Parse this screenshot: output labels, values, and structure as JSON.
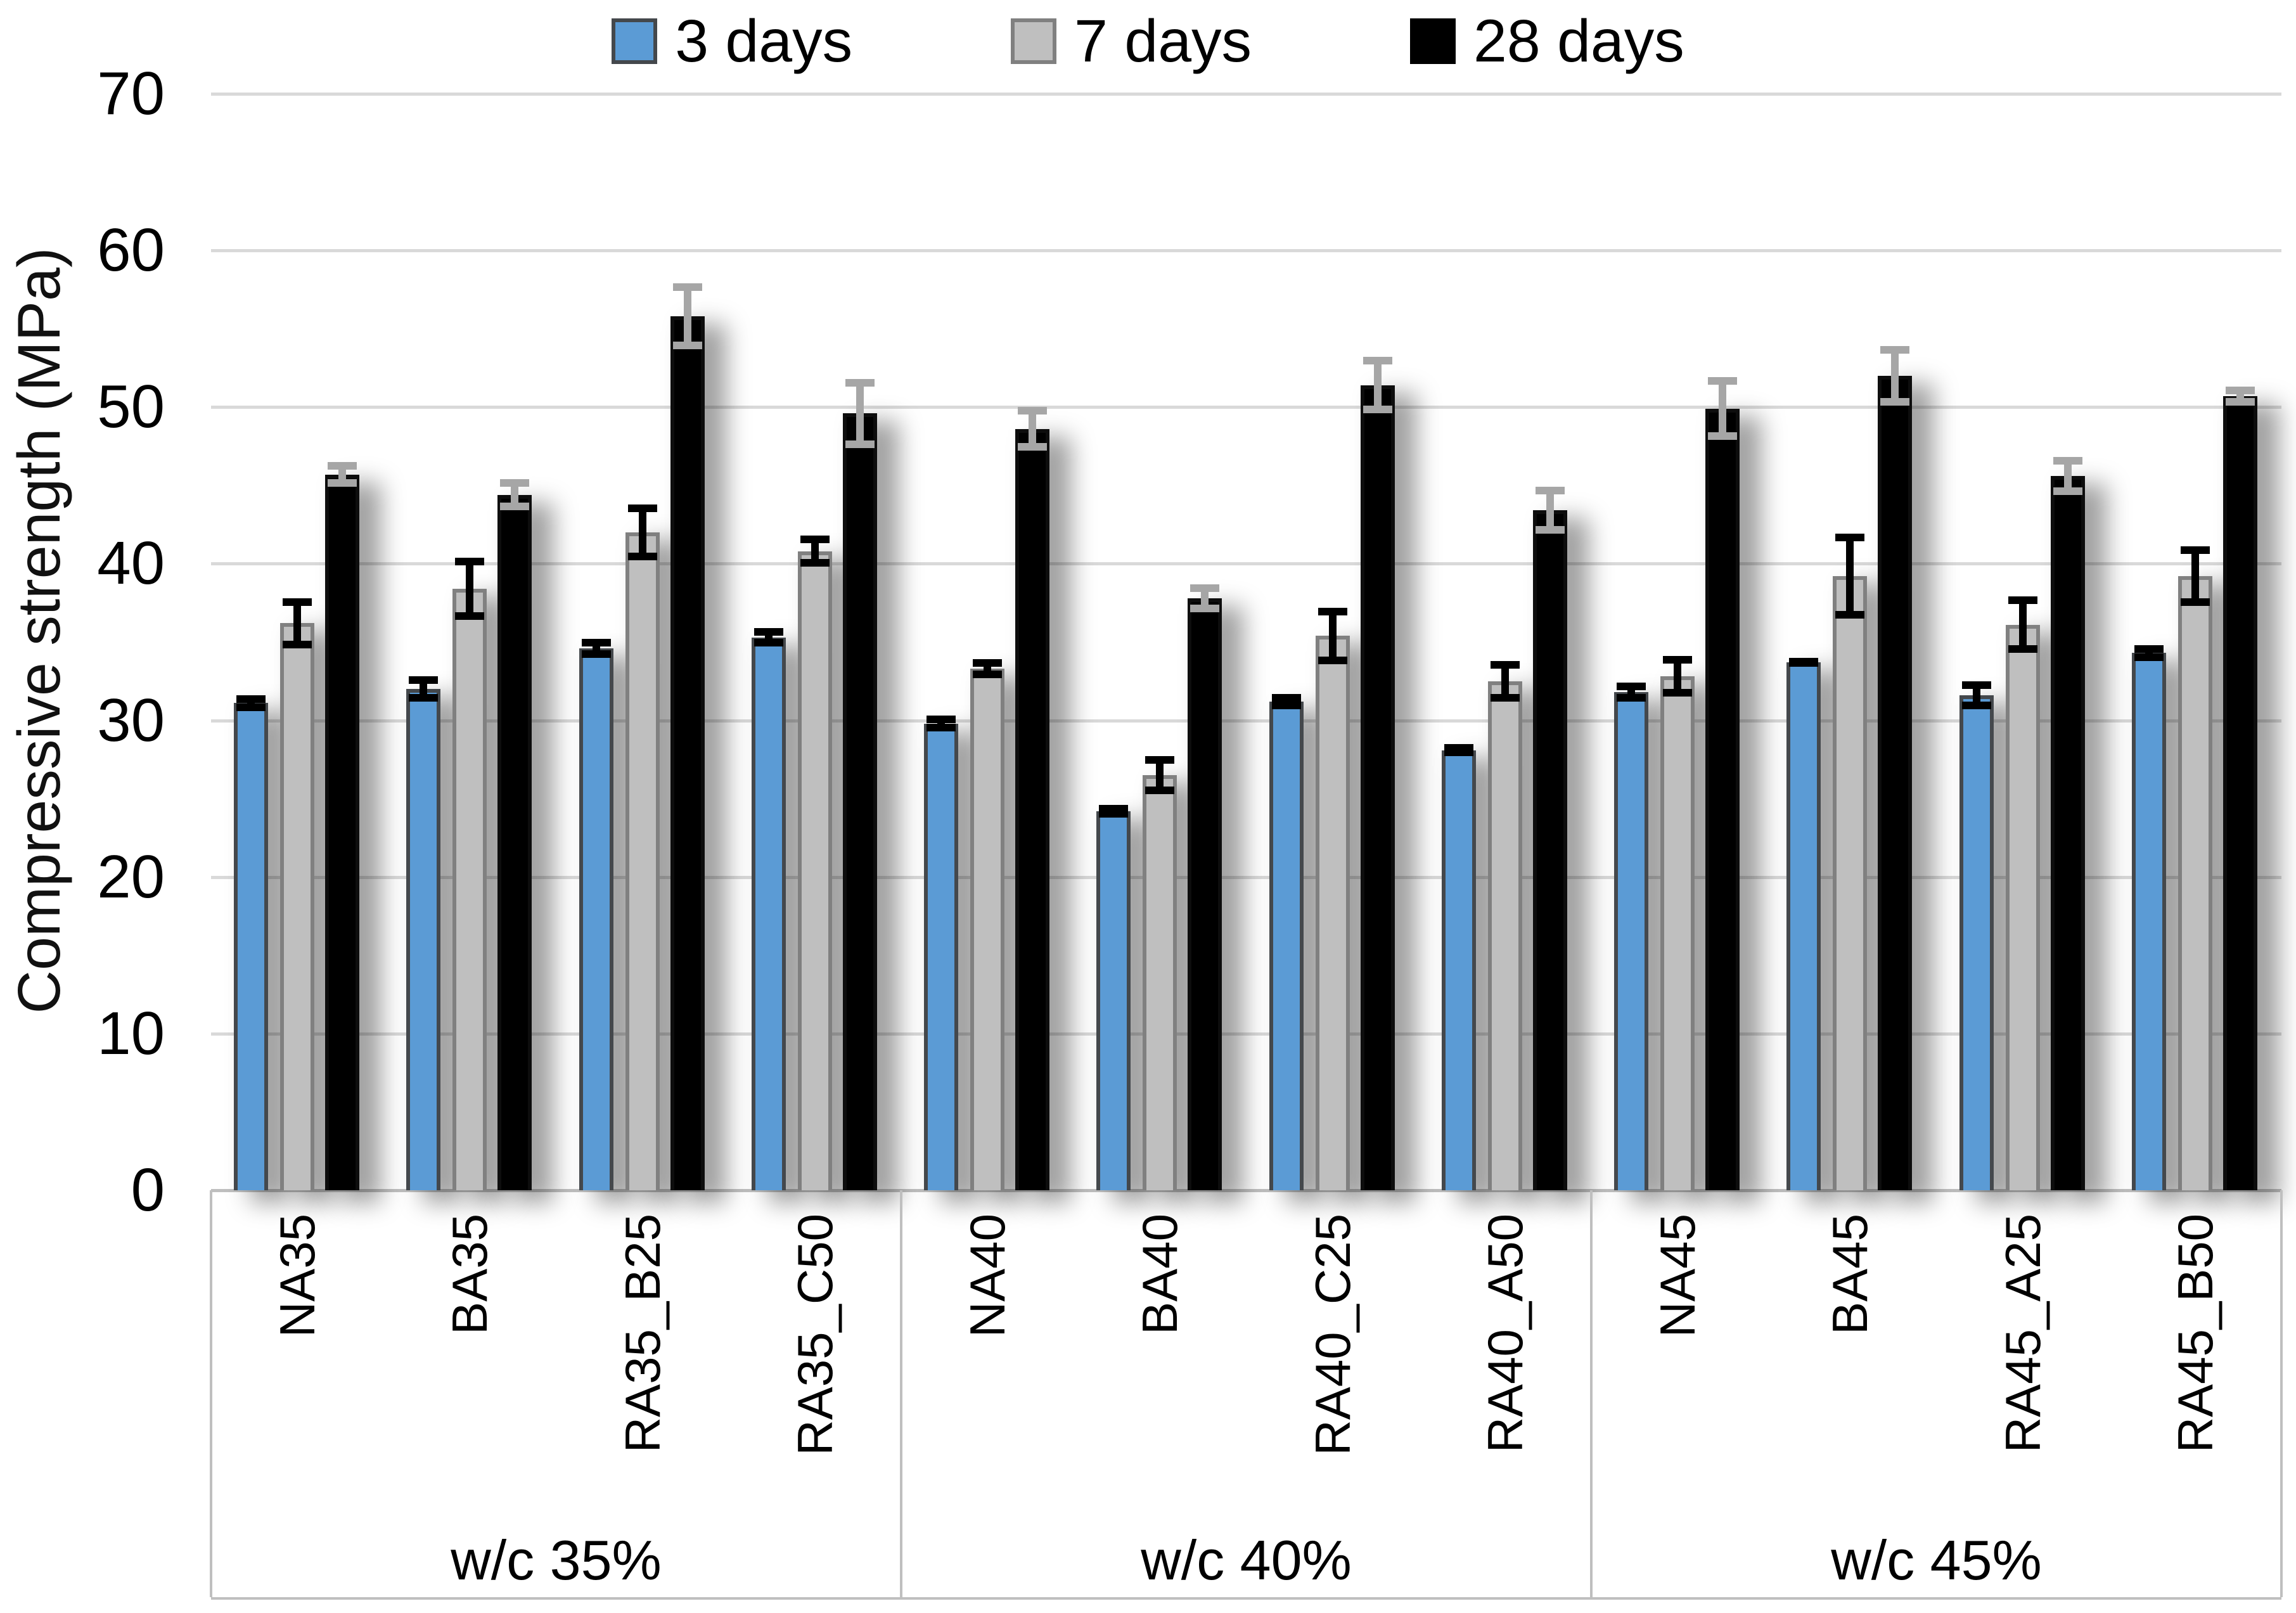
{
  "legend": {
    "items": [
      {
        "label": "3 days",
        "color": "#5B9BD5",
        "border": "#44484c"
      },
      {
        "label": "7 days",
        "color": "#BFBFBF",
        "border": "#808080"
      },
      {
        "label": "28 days",
        "color": "#000000",
        "border": "#000000"
      }
    ]
  },
  "y_axis": {
    "title": "Compressive strength (MPa)",
    "tick_labels": [
      "0",
      "10",
      "20",
      "30",
      "40",
      "50",
      "60",
      "70"
    ],
    "min": 0,
    "max": 70
  },
  "x_axis": {
    "section_labels": [
      "w/c 35%",
      "w/c 40%",
      "w/c 45%"
    ]
  },
  "chart_data": {
    "type": "bar",
    "ylabel": "Compressive strength (MPa)",
    "ylim": [
      0,
      70
    ],
    "ytick_step": 10,
    "grid": true,
    "legend_position": "top",
    "error_bars": true,
    "categories": [
      "NA35",
      "BA35",
      "RA35_B25",
      "RA35_C50",
      "NA40",
      "BA40",
      "RA40_C25",
      "RA40_A50",
      "NA45",
      "BA45",
      "RA45_A25",
      "RA45_B50"
    ],
    "groups": [
      {
        "label": "w/c 35%",
        "categories": [
          "NA35",
          "BA35",
          "RA35_B25",
          "RA35_C50"
        ]
      },
      {
        "label": "w/c 40%",
        "categories": [
          "NA40",
          "BA40",
          "RA40_C25",
          "RA40_A50"
        ]
      },
      {
        "label": "w/c 45%",
        "categories": [
          "NA45",
          "BA45",
          "RA45_A25",
          "RA45_B50"
        ]
      }
    ],
    "series": [
      {
        "name": "3 days",
        "color": "#5B9BD5",
        "border_color": "#44484c",
        "error_color": "#000000",
        "values": [
          31.1,
          32.0,
          34.6,
          35.3,
          29.8,
          24.2,
          31.2,
          28.1,
          31.8,
          33.7,
          31.6,
          34.3
        ],
        "errors": [
          0.5,
          0.8,
          0.6,
          0.6,
          0.5,
          0.4,
          0.5,
          0.4,
          0.6,
          0.2,
          0.9,
          0.5
        ]
      },
      {
        "name": "7 days",
        "color": "#BFBFBF",
        "border_color": "#808080",
        "error_color": "#000000",
        "values": [
          36.2,
          38.4,
          42.0,
          40.8,
          33.3,
          26.5,
          35.4,
          32.5,
          32.8,
          39.2,
          36.1,
          39.2
        ],
        "errors": [
          1.6,
          2.0,
          1.8,
          1.0,
          0.6,
          1.2,
          1.8,
          1.3,
          1.3,
          2.7,
          1.8,
          1.9
        ]
      },
      {
        "name": "28 days",
        "color": "#000000",
        "border_color": "#0d0d0d",
        "error_color": "#A6A6A6",
        "values": [
          45.7,
          44.4,
          55.8,
          49.6,
          48.6,
          37.8,
          51.4,
          43.4,
          49.9,
          52.0,
          45.6,
          50.7
        ],
        "errors": [
          0.8,
          1.0,
          2.1,
          2.2,
          1.4,
          0.9,
          1.8,
          1.5,
          2.0,
          1.9,
          1.2,
          0.6
        ]
      }
    ]
  }
}
